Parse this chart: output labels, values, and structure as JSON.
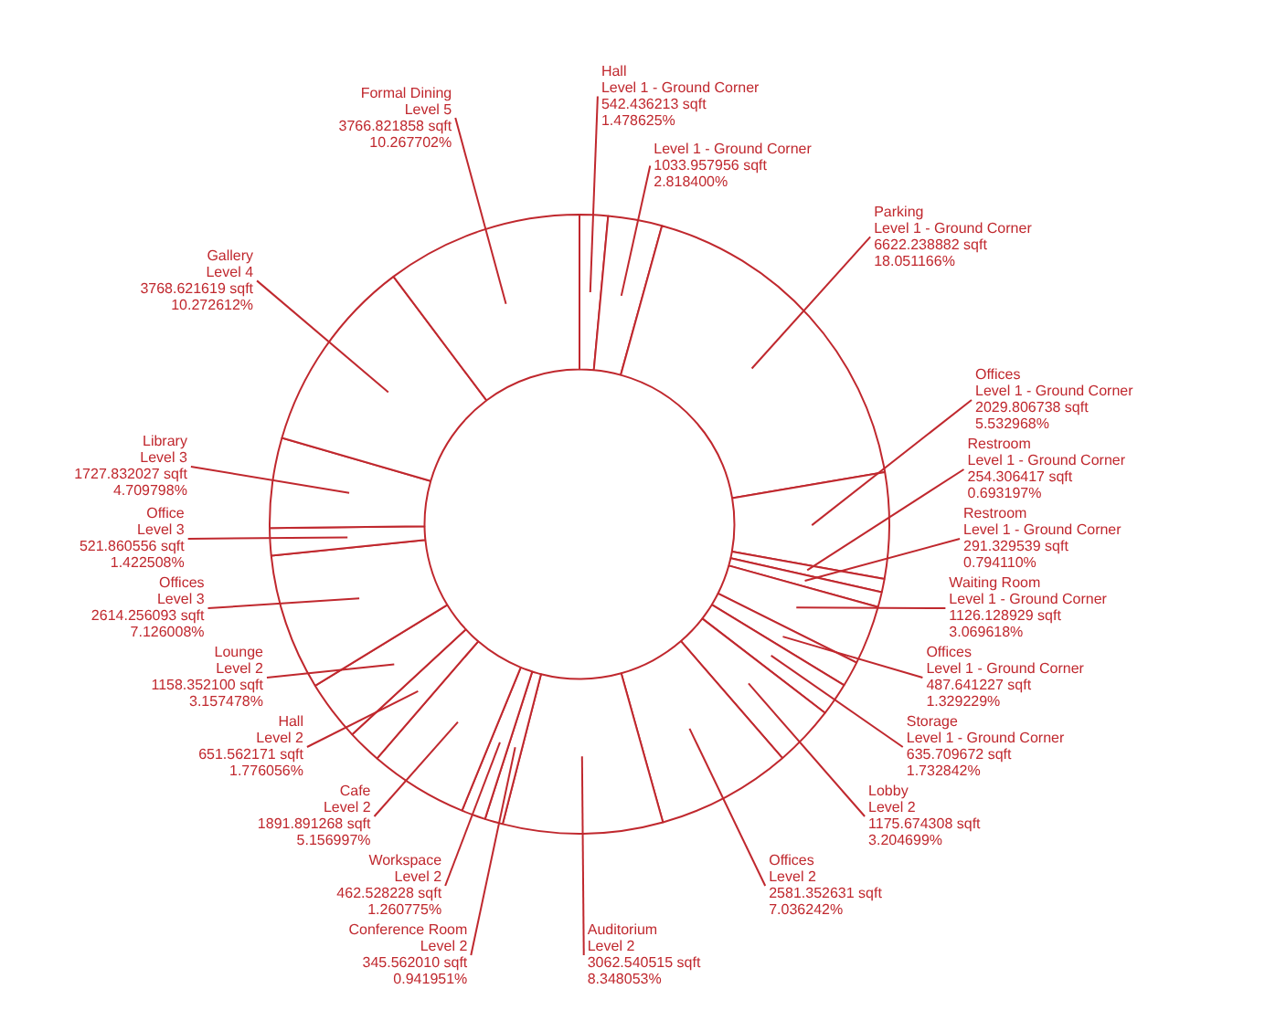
{
  "chart_data": {
    "type": "donut",
    "categories": [
      "Hall",
      null,
      "Parking",
      "Offices",
      "Restroom",
      "Restroom",
      "Waiting Room",
      "Offices",
      "Storage",
      "Lobby",
      "Offices",
      "Auditorium",
      "Conference Room",
      "Workspace",
      "Cafe",
      "Hall",
      "Lounge",
      "Offices",
      "Office",
      "Library",
      "Gallery",
      "Formal Dining"
    ],
    "values": [
      542.436213,
      1033.957956,
      6622.238882,
      2029.806738,
      254.306417,
      291.329539,
      1126.128929,
      487.641227,
      635.709672,
      1175.674308,
      2581.352631,
      3062.540515,
      345.56201,
      462.528228,
      1891.891268,
      651.562171,
      1158.3521,
      2614.256093,
      521.860556,
      1727.832027,
      3768.621619,
      3766.821858
    ],
    "value_labels": [
      "Level 1 - Ground Corner\n542.436213 sqft\n1.478625%",
      "Level 1 - Ground Corner\n1033.957956 sqft\n2.818400%",
      "Level 1 - Ground Corner\n6622.238882 sqft\n18.051166%",
      "Level 1 - Ground Corner\n2029.806738 sqft\n5.532968%",
      "Level 1 - Ground Corner\n254.306417 sqft\n0.693197%",
      "Level 1 - Ground Corner\n291.329539 sqft\n0.794110%",
      "Level 1 - Ground Corner\n1126.128929 sqft\n3.069618%",
      "Level 1 - Ground Corner\n487.641227 sqft\n1.329229%",
      "Level 1 - Ground Corner\n635.709672 sqft\n1.732842%",
      "Level 2\n1175.674308 sqft\n3.204699%",
      "Level 2\n2581.352631 sqft\n7.036242%",
      "Level 2\n3062.540515 sqft\n8.348053%",
      "Level 2\n345.562010 sqft\n0.941951%",
      "Level 2\n462.528228 sqft\n1.260775%",
      "Level 2\n1891.891268 sqft\n5.156997%",
      "Level 2\n651.562171 sqft\n1.776056%",
      "Level 2\n1158.352100 sqft\n3.157478%",
      "Level 3\n2614.256093 sqft\n7.126008%",
      "Level 3\n521.860556 sqft\n1.422508%",
      "Level 3\n1727.832027 sqft\n4.709798%",
      "Level 4\n3768.621619 sqft\n10.272612%",
      "Level 5\n3766.821858 sqft\n10.267702%"
    ],
    "colors": [
      "#ffffff",
      "#ffffff",
      "#ffffff",
      "#ffffff",
      "#ffffff",
      "#ffffff",
      "#ffffff",
      "#ffffff",
      "#ffffff",
      "#ffffff",
      "#ffffff",
      "#ffffff",
      "#ffffff",
      "#ffffff",
      "#ffffff",
      "#ffffff",
      "#ffffff",
      "#ffffff",
      "#ffffff",
      "#ffffff",
      "#ffffff",
      "#ffffff"
    ]
  }
}
